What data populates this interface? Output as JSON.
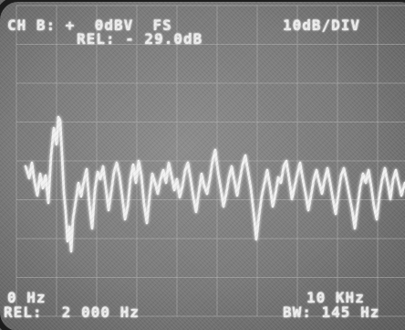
{
  "top_readout": {
    "channel": "CH B: +  0dBV  FS",
    "rel": "REL: - 29.0dB",
    "scale": "10dB/DIV"
  },
  "bottom_readout": {
    "start": "0 Hz",
    "rel": "REL:  2 000 Hz",
    "stop": "10 KHz",
    "bw": "BW: 145 Hz"
  },
  "colors": {
    "screen": "#7d7d7d",
    "trace": "#f2f2f2",
    "grid": "#b4b4b4"
  }
}
